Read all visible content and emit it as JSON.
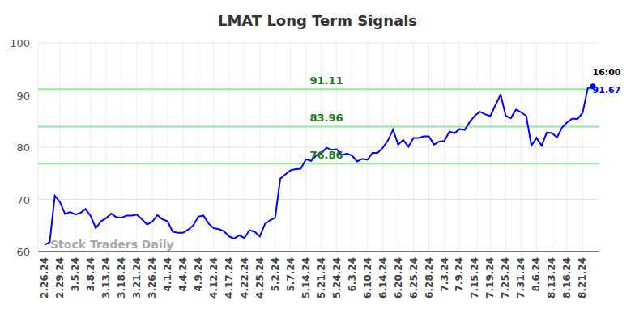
{
  "chart_data": {
    "type": "line",
    "title": "LMAT Long Term Signals",
    "categories": [
      "2.26.24",
      null,
      null,
      "2.29.24",
      null,
      null,
      "3.5.24",
      null,
      null,
      "3.8.24",
      null,
      null,
      "3.13.24",
      null,
      null,
      "3.18.24",
      null,
      null,
      "3.21.24",
      null,
      null,
      "3.26.24",
      null,
      null,
      "4.1.24",
      null,
      null,
      "4.4.24",
      null,
      null,
      "4.9.24",
      null,
      null,
      "4.12.24",
      null,
      null,
      "4.17.24",
      null,
      null,
      "4.22.24",
      null,
      null,
      "4.25.24",
      null,
      null,
      "5.2.24",
      null,
      null,
      "5.7.24",
      null,
      null,
      "5.14.24",
      null,
      null,
      "5.21.24",
      null,
      null,
      "5.24.24",
      null,
      null,
      "6.3.24",
      null,
      null,
      "6.10.24",
      null,
      null,
      "6.14.24",
      null,
      null,
      "6.20.24",
      null,
      null,
      "6.25.24",
      null,
      null,
      "6.28.24",
      null,
      null,
      "7.3.24",
      null,
      null,
      "7.9.24",
      null,
      null,
      "7.15.24",
      null,
      null,
      "7.19.24",
      null,
      null,
      "7.25.24",
      null,
      null,
      "7.31.24",
      null,
      null,
      "8.6.24",
      null,
      null,
      "8.13.24",
      null,
      null,
      "8.16.24",
      null,
      null,
      "8.21.24",
      null,
      null
    ],
    "values": [
      61.3,
      61.8,
      70.7,
      69.5,
      67.2,
      67.6,
      67.1,
      67.4,
      68.2,
      66.8,
      64.5,
      65.8,
      66.4,
      67.3,
      66.6,
      66.5,
      66.9,
      66.9,
      67.1,
      66.2,
      65.2,
      65.7,
      67.0,
      66.2,
      65.8,
      63.8,
      63.6,
      63.6,
      64.2,
      65.0,
      66.7,
      66.9,
      65.4,
      64.5,
      64.3,
      63.9,
      62.9,
      62.5,
      63.1,
      62.6,
      64.1,
      63.8,
      62.9,
      65.3,
      66.0,
      66.5,
      74.0,
      74.8,
      75.6,
      75.8,
      75.9,
      77.7,
      77.4,
      78.4,
      78.8,
      79.9,
      79.5,
      79.6,
      78.5,
      78.8,
      78.4,
      77.3,
      77.8,
      77.6,
      78.9,
      78.9,
      79.9,
      81.3,
      83.4,
      80.5,
      81.4,
      80.1,
      81.8,
      81.8,
      82.1,
      82.1,
      80.5,
      81.1,
      81.2,
      83.0,
      82.7,
      83.5,
      83.3,
      84.9,
      86.1,
      86.8,
      86.3,
      86.0,
      88.1,
      90.1,
      86.0,
      85.6,
      87.2,
      86.7,
      86.0,
      80.3,
      81.8,
      80.3,
      82.8,
      82.7,
      81.9,
      83.8,
      84.8,
      85.5,
      85.4,
      86.6,
      91.3,
      91.67
    ],
    "color": "#0000ff",
    "ylim": [
      60,
      100
    ],
    "yticks": [
      60,
      70,
      80,
      90,
      100
    ],
    "grid": true,
    "reference_lines": [
      91.11,
      83.96,
      76.86
    ],
    "annotations": [
      {
        "text": "16:00"
      },
      {
        "text": "91.67"
      }
    ],
    "watermark": "Stock Traders Daily"
  }
}
